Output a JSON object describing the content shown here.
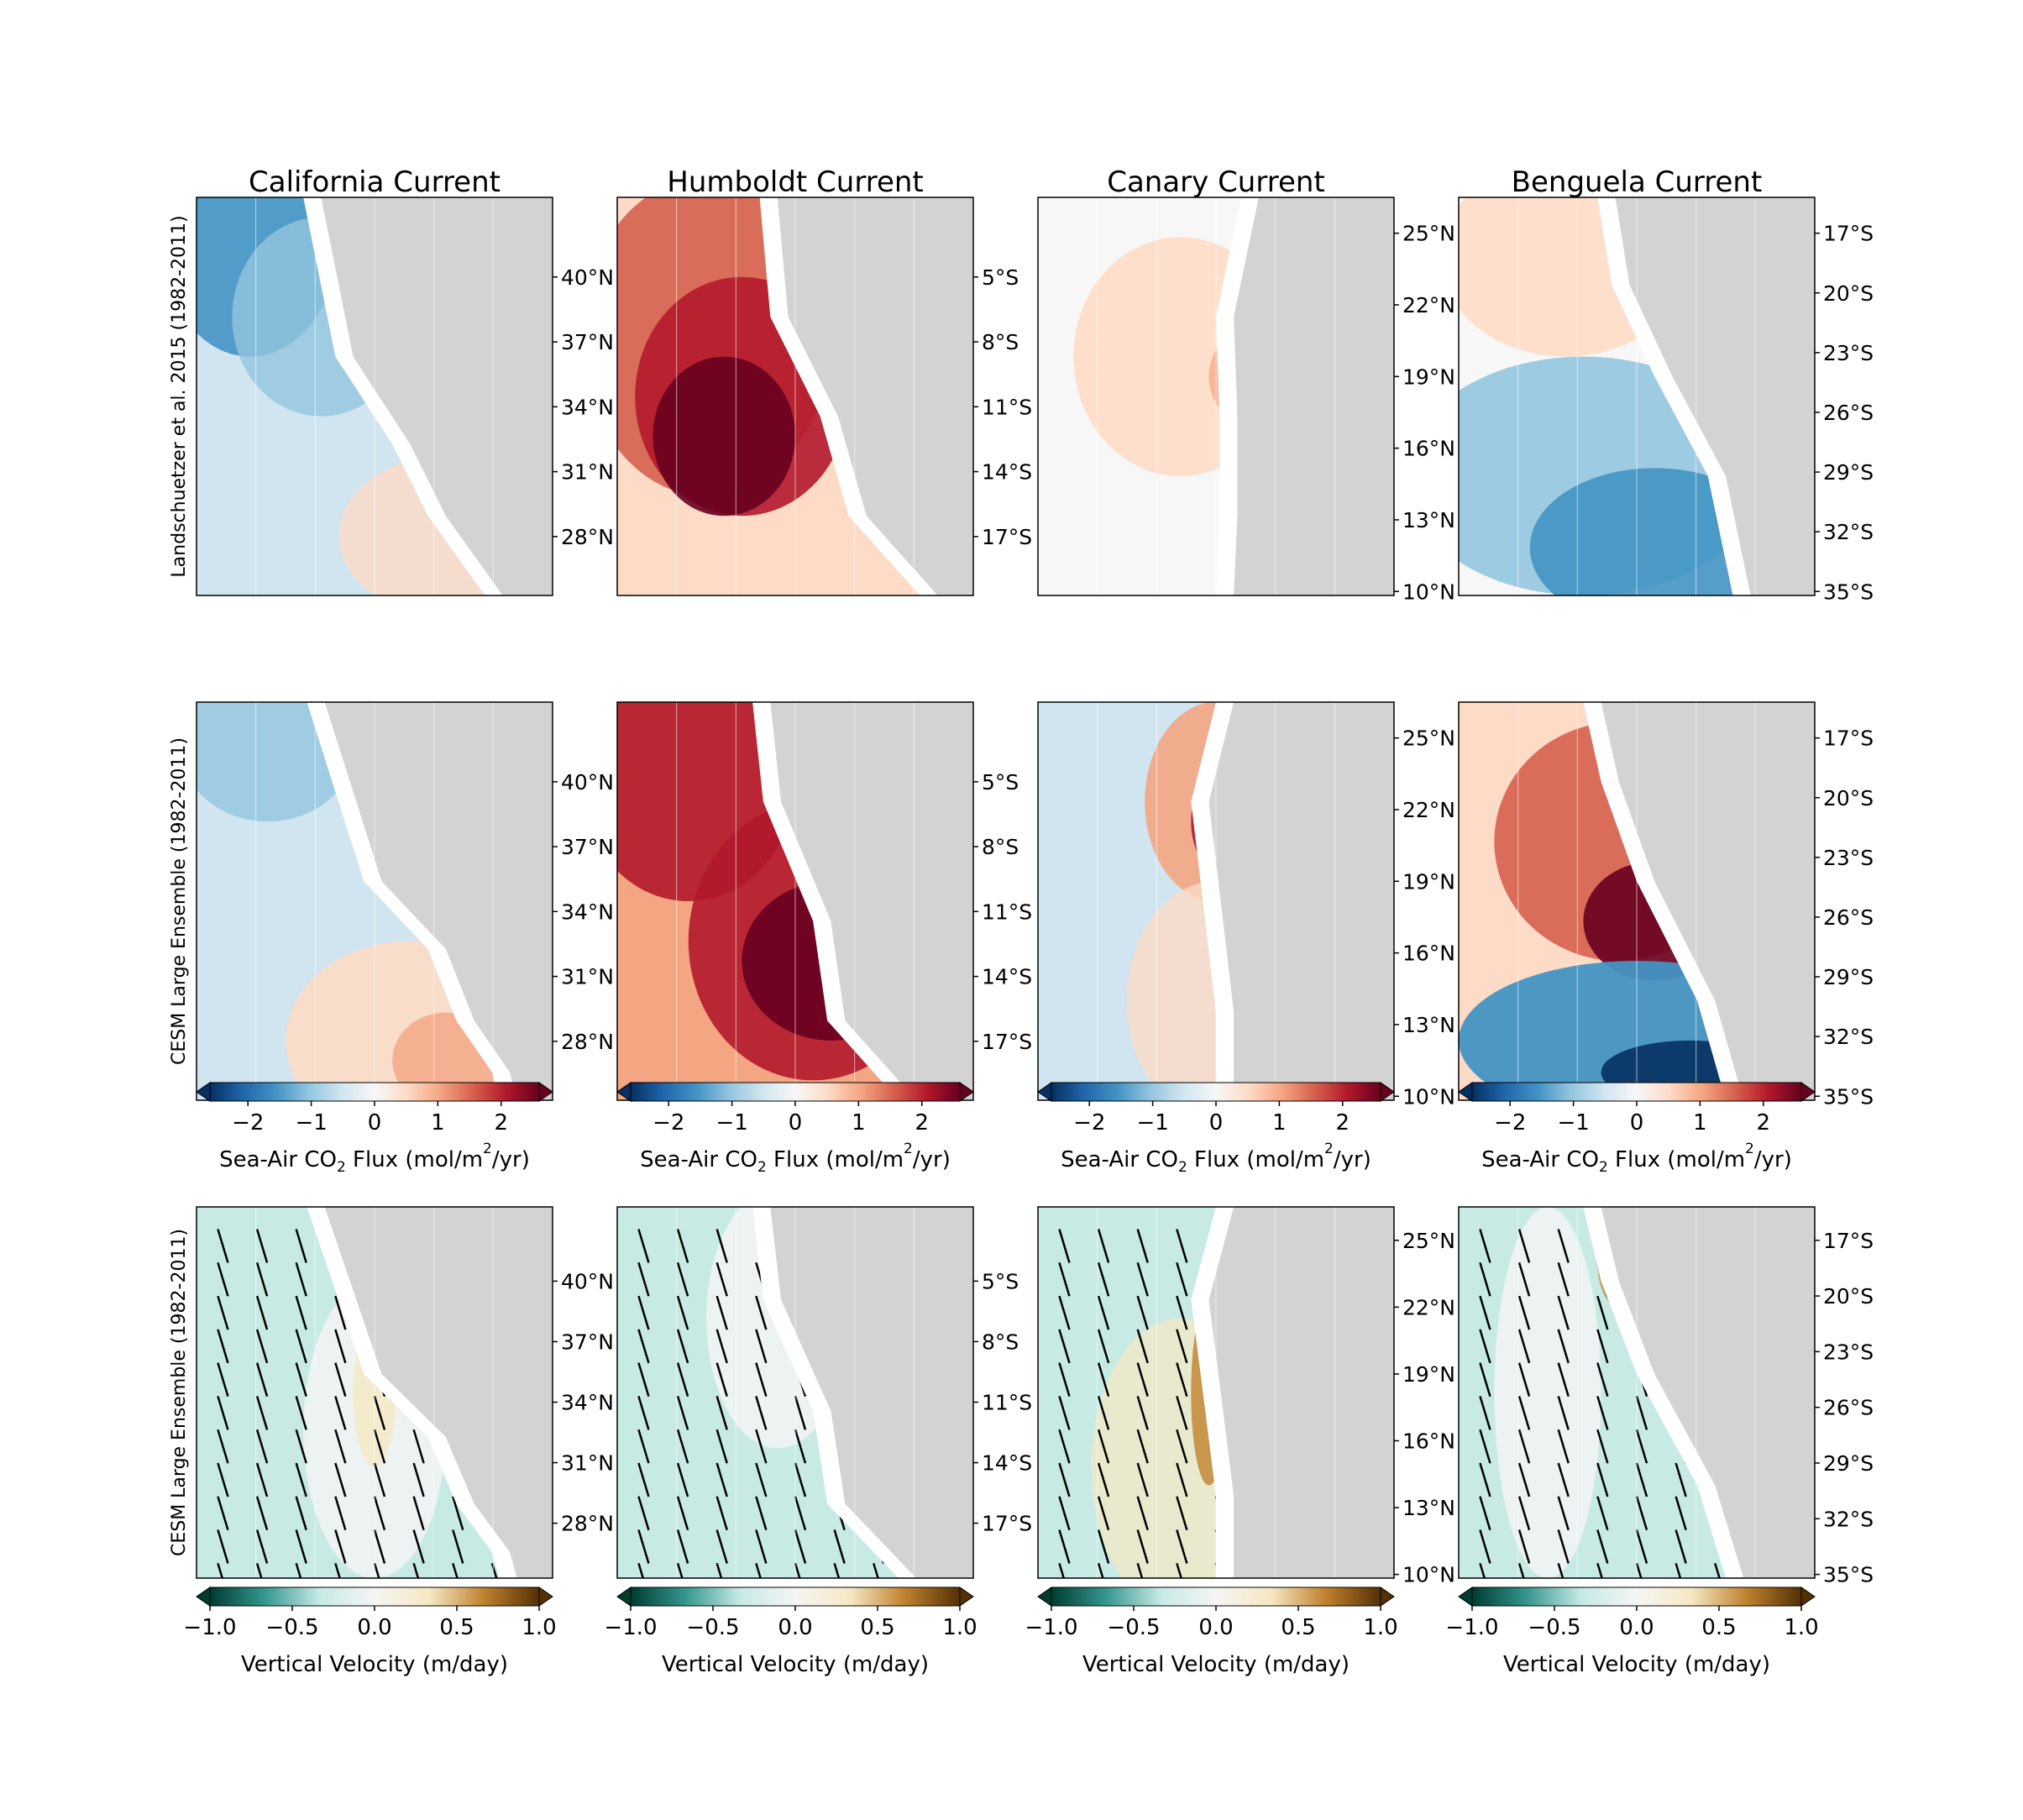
{
  "chart_data": {
    "type": "heatmap",
    "columns": [
      {
        "title": "California Current",
        "lat_ticks": [
          "40°N",
          "37°N",
          "34°N",
          "31°N",
          "28°N"
        ],
        "lat_ticks_row3": [
          "40°N",
          "37°N",
          "34°N",
          "31°N",
          "28°N"
        ]
      },
      {
        "title": "Humboldt Current",
        "lat_ticks": [
          "5°S",
          "8°S",
          "11°S",
          "14°S",
          "17°S"
        ],
        "lat_ticks_row3": [
          "5°S",
          "8°S",
          "11°S",
          "14°S",
          "17°S"
        ]
      },
      {
        "title": "Canary Current",
        "lat_ticks": [
          "25°N",
          "22°N",
          "19°N",
          "16°N",
          "13°N",
          "10°N"
        ],
        "lat_ticks_row3": [
          "25°N",
          "22°N",
          "19°N",
          "16°N",
          "13°N",
          "10°N"
        ]
      },
      {
        "title": "Benguela Current",
        "lat_ticks": [
          "17°S",
          "20°S",
          "23°S",
          "26°S",
          "29°S",
          "32°S",
          "35°S"
        ],
        "lat_ticks_row3": [
          "17°S",
          "20°S",
          "23°S",
          "26°S",
          "29°S",
          "32°S",
          "35°S"
        ]
      }
    ],
    "rows": [
      {
        "label": "Landschuetzer et al. 2015 (1982-2011)",
        "variable": "Sea-Air CO2 Flux"
      },
      {
        "label": "CESM Large Ensemble (1982-2011)",
        "variable": "Sea-Air CO2 Flux"
      },
      {
        "label": "CESM Large Ensemble (1982-2011)",
        "variable": "Vertical Velocity"
      }
    ],
    "colorbars": {
      "flux": {
        "label_prefix": "Sea-Air CO",
        "label_sub": "2",
        "label_mid": " Flux (mol/m",
        "label_sup": "2",
        "label_suffix": "/yr)",
        "range": [
          -2.6,
          2.6
        ],
        "ticks": [
          "−2",
          "−1",
          "0",
          "1",
          "2"
        ],
        "colormap": "RdBu_r"
      },
      "velocity": {
        "label": "Vertical Velocity (m/day)",
        "range": [
          -1.0,
          1.0
        ],
        "ticks": [
          "−1.0",
          "−0.5",
          "0.0",
          "0.5",
          "1.0"
        ],
        "colormap": "BrBG_r"
      }
    },
    "legend": "none",
    "grid": true
  },
  "colors": {
    "land": "#d3d3d3",
    "flux_scale": [
      "#053061",
      "#2166ac",
      "#4393c3",
      "#92c5de",
      "#d1e5f0",
      "#f7f7f7",
      "#fddbc7",
      "#f4a582",
      "#d6604d",
      "#b2182b",
      "#67001f"
    ],
    "velocity_scale": [
      "#003c30",
      "#35978f",
      "#c7eae5",
      "#f5f5f5",
      "#f6e8c3",
      "#bf812d",
      "#543005"
    ]
  }
}
